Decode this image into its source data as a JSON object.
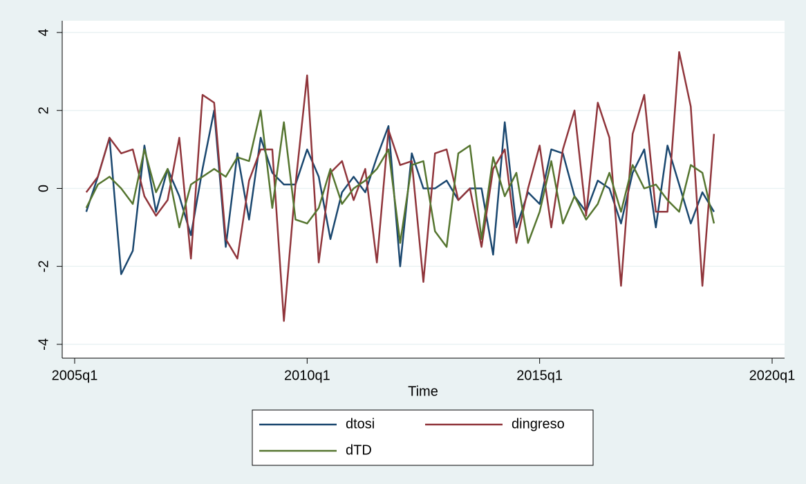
{
  "chart_data": {
    "type": "line",
    "x_label": "Time",
    "x": [
      "2005q2",
      "2005q3",
      "2005q4",
      "2006q1",
      "2006q2",
      "2006q3",
      "2006q4",
      "2007q1",
      "2007q2",
      "2007q3",
      "2007q4",
      "2008q1",
      "2008q2",
      "2008q3",
      "2008q4",
      "2009q1",
      "2009q2",
      "2009q3",
      "2009q4",
      "2010q1",
      "2010q2",
      "2010q3",
      "2010q4",
      "2011q1",
      "2011q2",
      "2011q3",
      "2011q4",
      "2012q1",
      "2012q2",
      "2012q3",
      "2012q4",
      "2013q1",
      "2013q2",
      "2013q3",
      "2013q4",
      "2014q1",
      "2014q2",
      "2014q3",
      "2014q4",
      "2015q1",
      "2015q2",
      "2015q3",
      "2015q4",
      "2016q1",
      "2016q2",
      "2016q3",
      "2016q4",
      "2017q1",
      "2017q2",
      "2017q3",
      "2017q4",
      "2018q1",
      "2018q2",
      "2018q3",
      "2018q4"
    ],
    "series": [
      {
        "name": "dtosi",
        "color": "#1a476f",
        "values": [
          -0.6,
          0.3,
          1.3,
          -2.2,
          -1.6,
          1.1,
          -0.6,
          0.5,
          -0.2,
          -1.2,
          0.5,
          2.0,
          -1.5,
          0.9,
          -0.8,
          1.3,
          0.4,
          0.1,
          0.1,
          1.0,
          0.3,
          -1.3,
          -0.1,
          0.3,
          -0.1,
          0.8,
          1.6,
          -2.0,
          0.9,
          0.0,
          0.0,
          0.2,
          -0.3,
          0.0,
          0.0,
          -1.7,
          1.7,
          -1.0,
          -0.1,
          -0.4,
          1.0,
          0.9,
          -0.2,
          -0.6,
          0.2,
          0.0,
          -0.9,
          0.4,
          1.0,
          -1.0,
          1.1,
          0.1,
          -0.9,
          -0.1,
          -0.6
        ]
      },
      {
        "name": "dingreso",
        "color": "#90353b",
        "values": [
          -0.1,
          0.3,
          1.3,
          0.9,
          1.0,
          -0.2,
          -0.7,
          -0.3,
          1.3,
          -1.8,
          2.4,
          2.2,
          -1.3,
          -1.8,
          0.2,
          1.0,
          1.0,
          -3.4,
          0.1,
          2.9,
          -1.9,
          0.4,
          0.7,
          -0.3,
          0.5,
          -1.9,
          1.5,
          0.6,
          0.7,
          -2.4,
          0.9,
          1.0,
          -0.3,
          0.0,
          -1.5,
          0.5,
          1.0,
          -1.4,
          0.0,
          1.1,
          -1.0,
          1.0,
          2.0,
          -0.7,
          2.2,
          1.3,
          -2.5,
          1.4,
          2.4,
          -0.6,
          -0.6,
          3.5,
          2.1,
          -2.5,
          1.4
        ]
      },
      {
        "name": "dTD",
        "color": "#55752f",
        "values": [
          -0.5,
          0.1,
          0.3,
          0.0,
          -0.4,
          1.0,
          -0.1,
          0.5,
          -1.0,
          0.1,
          0.3,
          0.5,
          0.3,
          0.8,
          0.7,
          2.0,
          -0.5,
          1.7,
          -0.8,
          -0.9,
          -0.5,
          0.5,
          -0.4,
          0.0,
          0.2,
          0.5,
          1.0,
          -1.4,
          0.6,
          0.7,
          -1.1,
          -1.5,
          0.9,
          1.1,
          -1.3,
          0.8,
          -0.2,
          0.4,
          -1.4,
          -0.6,
          0.7,
          -0.9,
          -0.2,
          -0.8,
          -0.4,
          0.4,
          -0.6,
          0.6,
          0.0,
          0.1,
          -0.3,
          -0.6,
          0.6,
          0.4,
          -0.9
        ]
      }
    ],
    "xlim": [
      "2005q1",
      "2020q1"
    ],
    "xticks": [
      "2005q1",
      "2010q1",
      "2015q1",
      "2020q1"
    ],
    "ylim": [
      -4,
      4
    ],
    "yticks": [
      -4,
      -2,
      0,
      2,
      4
    ],
    "grid": true,
    "legend": "bottom"
  }
}
